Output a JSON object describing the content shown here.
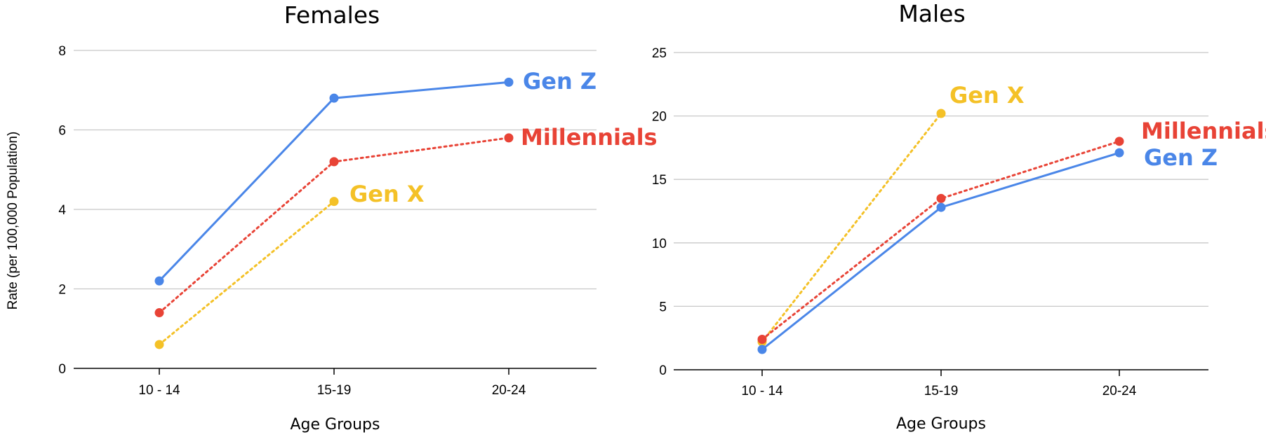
{
  "y_axis_label": "Rate (per 100,000 Population)",
  "colors": {
    "gen_z": "#4a86e8",
    "millennials": "#e84336",
    "gen_x": "#f4c127"
  },
  "chart_data": [
    {
      "type": "line",
      "title": "Females",
      "xlabel": "Age Groups",
      "categories": [
        "10 - 14",
        "15-19",
        "20-24"
      ],
      "ylim": [
        0,
        8
      ],
      "yticks": [
        "0",
        "2",
        "4",
        "6",
        "8"
      ],
      "grid": true,
      "series": [
        {
          "name": "Gen Z",
          "color": "#4a86e8",
          "style": "solid",
          "values": [
            2.2,
            6.8,
            7.2
          ]
        },
        {
          "name": "Millennials",
          "color": "#e84336",
          "style": "dotted",
          "values": [
            1.4,
            5.2,
            5.8
          ]
        },
        {
          "name": "Gen X",
          "color": "#f4c127",
          "style": "dotted",
          "values": [
            0.6,
            4.2,
            null
          ]
        }
      ]
    },
    {
      "type": "line",
      "title": "Males",
      "xlabel": "Age Groups",
      "categories": [
        "10 - 14",
        "15-19",
        "20-24"
      ],
      "ylim": [
        0,
        25
      ],
      "yticks": [
        "0",
        "5",
        "10",
        "15",
        "20",
        "25"
      ],
      "grid": true,
      "series": [
        {
          "name": "Gen Z",
          "color": "#4a86e8",
          "style": "solid",
          "values": [
            1.6,
            12.8,
            17.1
          ]
        },
        {
          "name": "Millennials",
          "color": "#e84336",
          "style": "dotted",
          "values": [
            2.4,
            13.5,
            18.0
          ]
        },
        {
          "name": "Gen X",
          "color": "#f4c127",
          "style": "dotted",
          "values": [
            2.2,
            20.2,
            null
          ]
        }
      ]
    }
  ]
}
